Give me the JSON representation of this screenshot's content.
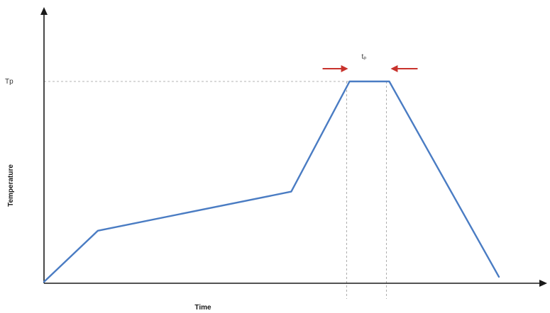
{
  "chart_data": {
    "type": "line",
    "title": "",
    "xlabel": "Time",
    "ylabel": "Temperature",
    "y_tick_label": "Tp",
    "annotation": "tₚ",
    "xlim": [
      0,
      100
    ],
    "ylim": [
      0,
      100
    ],
    "grid": false,
    "series": [
      {
        "color": "#4a7cc3",
        "points": [
          {
            "x": 0,
            "y": 0
          },
          {
            "x": 11,
            "y": 25.5
          },
          {
            "x": 50.5,
            "y": 45
          },
          {
            "x": 62.4,
            "y": 100
          },
          {
            "x": 70.5,
            "y": 100
          },
          {
            "x": 92.9,
            "y": 2.5
          }
        ]
      }
    ],
    "tp_value": 100,
    "tp_interval": [
      62.4,
      70.5
    ],
    "colors": {
      "line": "#4a7cc3",
      "axis": "#1a1a1a",
      "guide": "#9a9a9a",
      "arrow": "#c8322c"
    }
  }
}
